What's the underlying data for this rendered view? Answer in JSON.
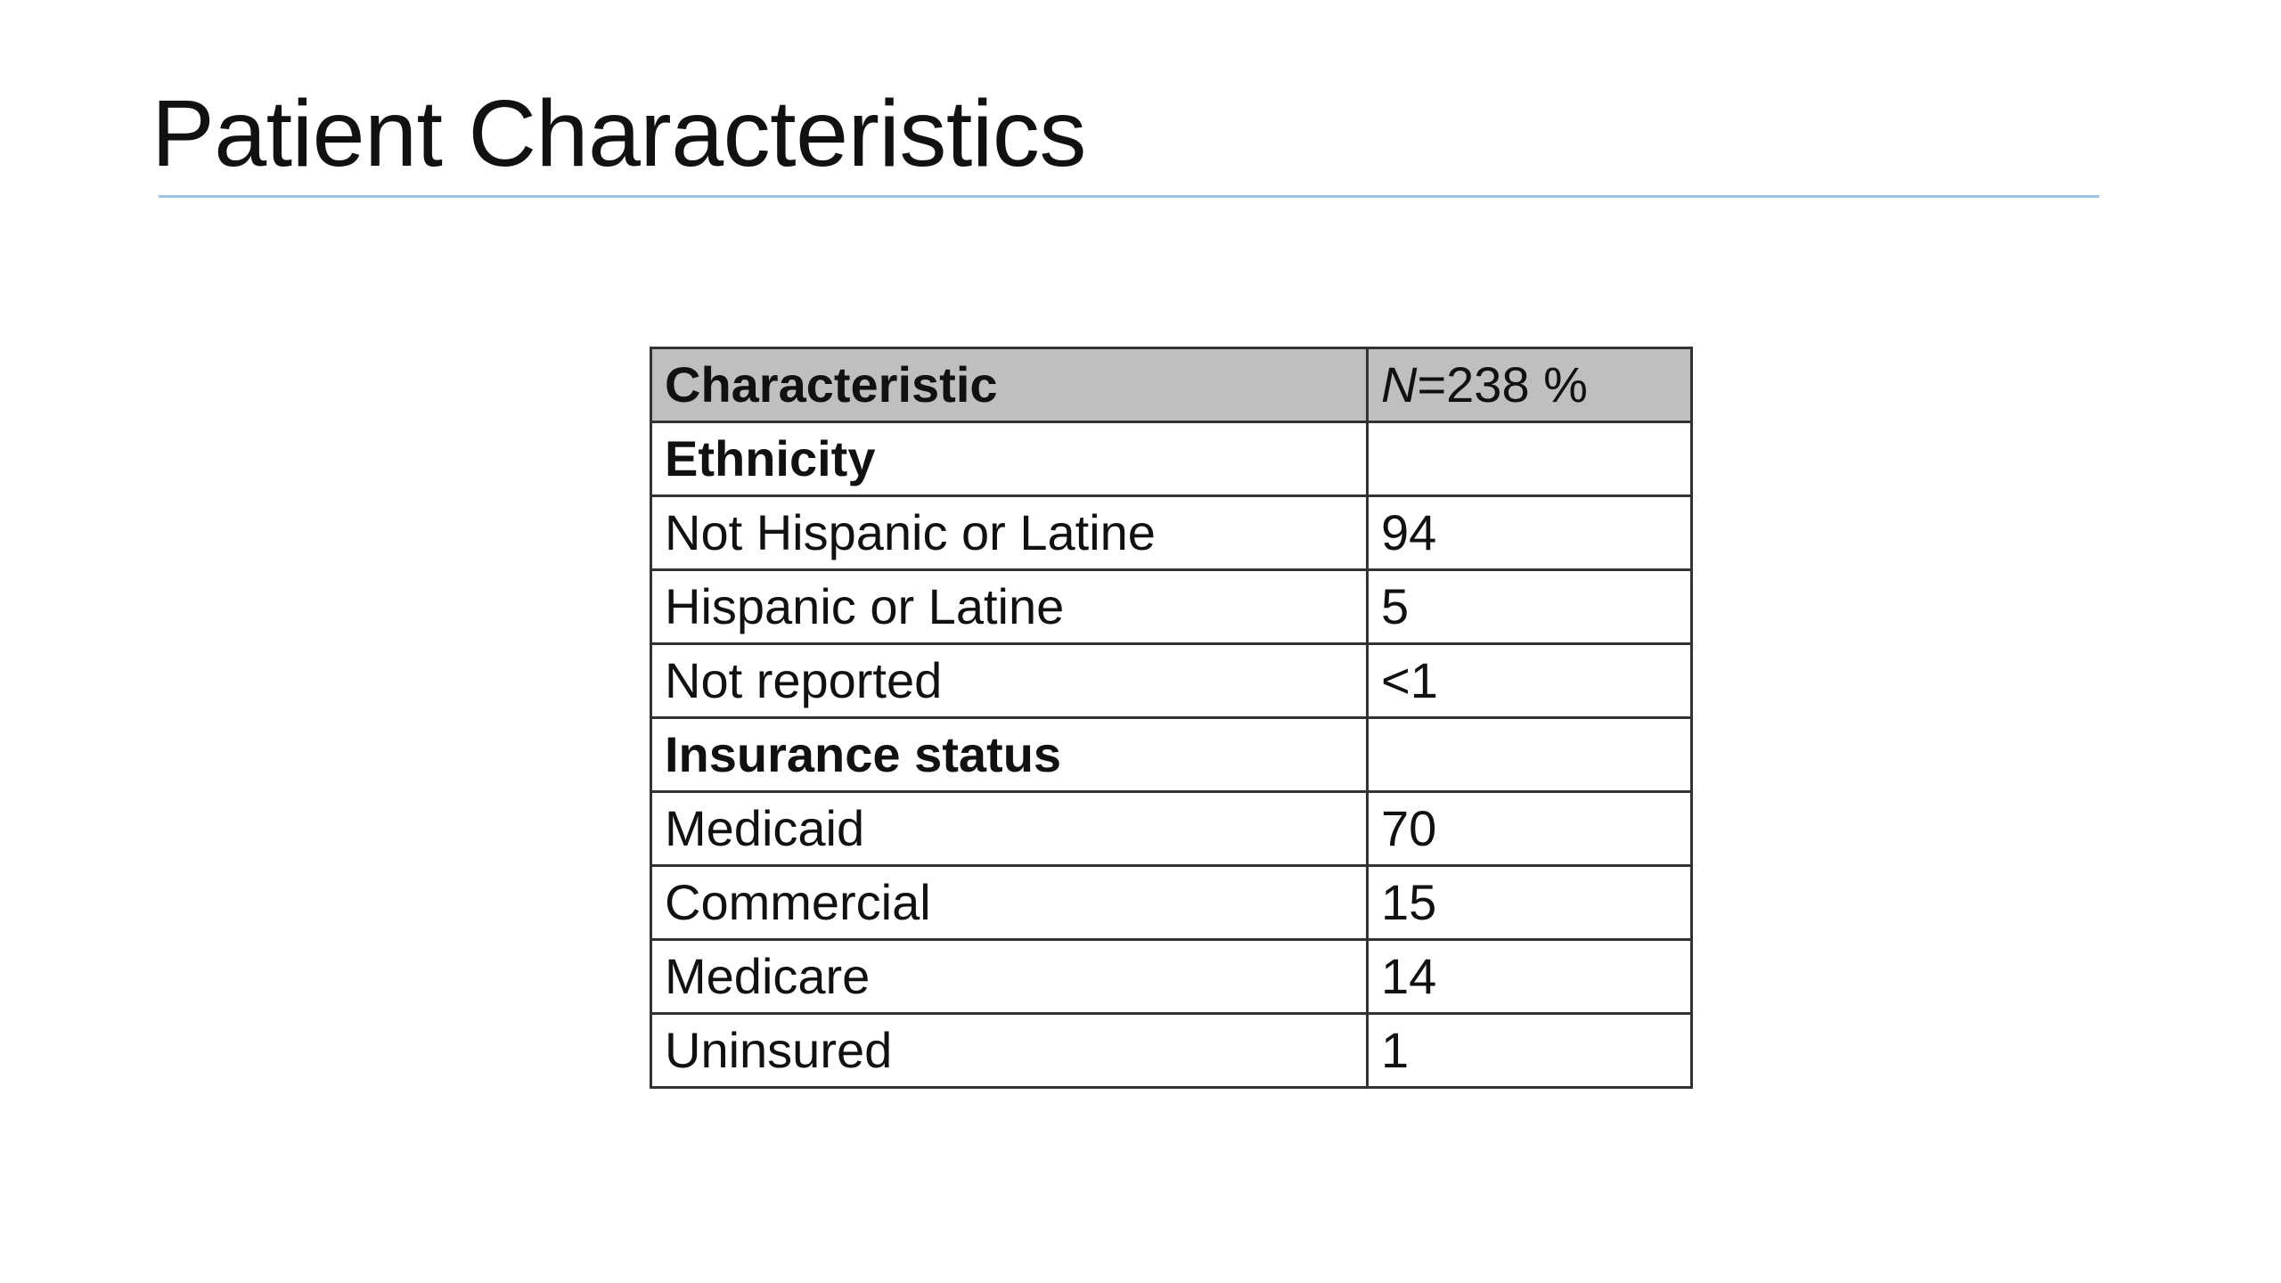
{
  "slide": {
    "title": "Patient Characteristics"
  },
  "table": {
    "header": {
      "characteristic": "Characteristic",
      "n_symbol": "N",
      "n_rest": "=238  %"
    },
    "sections": [
      {
        "label": "Ethnicity",
        "rows": [
          {
            "label": "Not Hispanic or Latine",
            "value": "94"
          },
          {
            "label": "Hispanic or Latine",
            "value": "5"
          },
          {
            "label": "Not reported",
            "value": "<1"
          }
        ]
      },
      {
        "label": "Insurance status",
        "rows": [
          {
            "label": "Medicaid",
            "value": "70"
          },
          {
            "label": "Commercial",
            "value": "15"
          },
          {
            "label": "Medicare",
            "value": "14"
          },
          {
            "label": "Uninsured",
            "value": "1"
          }
        ]
      }
    ]
  },
  "colors": {
    "title_rule": "#9dc3e6",
    "header_fill": "#bfbfbf",
    "border": "#333333",
    "text": "#111111"
  }
}
